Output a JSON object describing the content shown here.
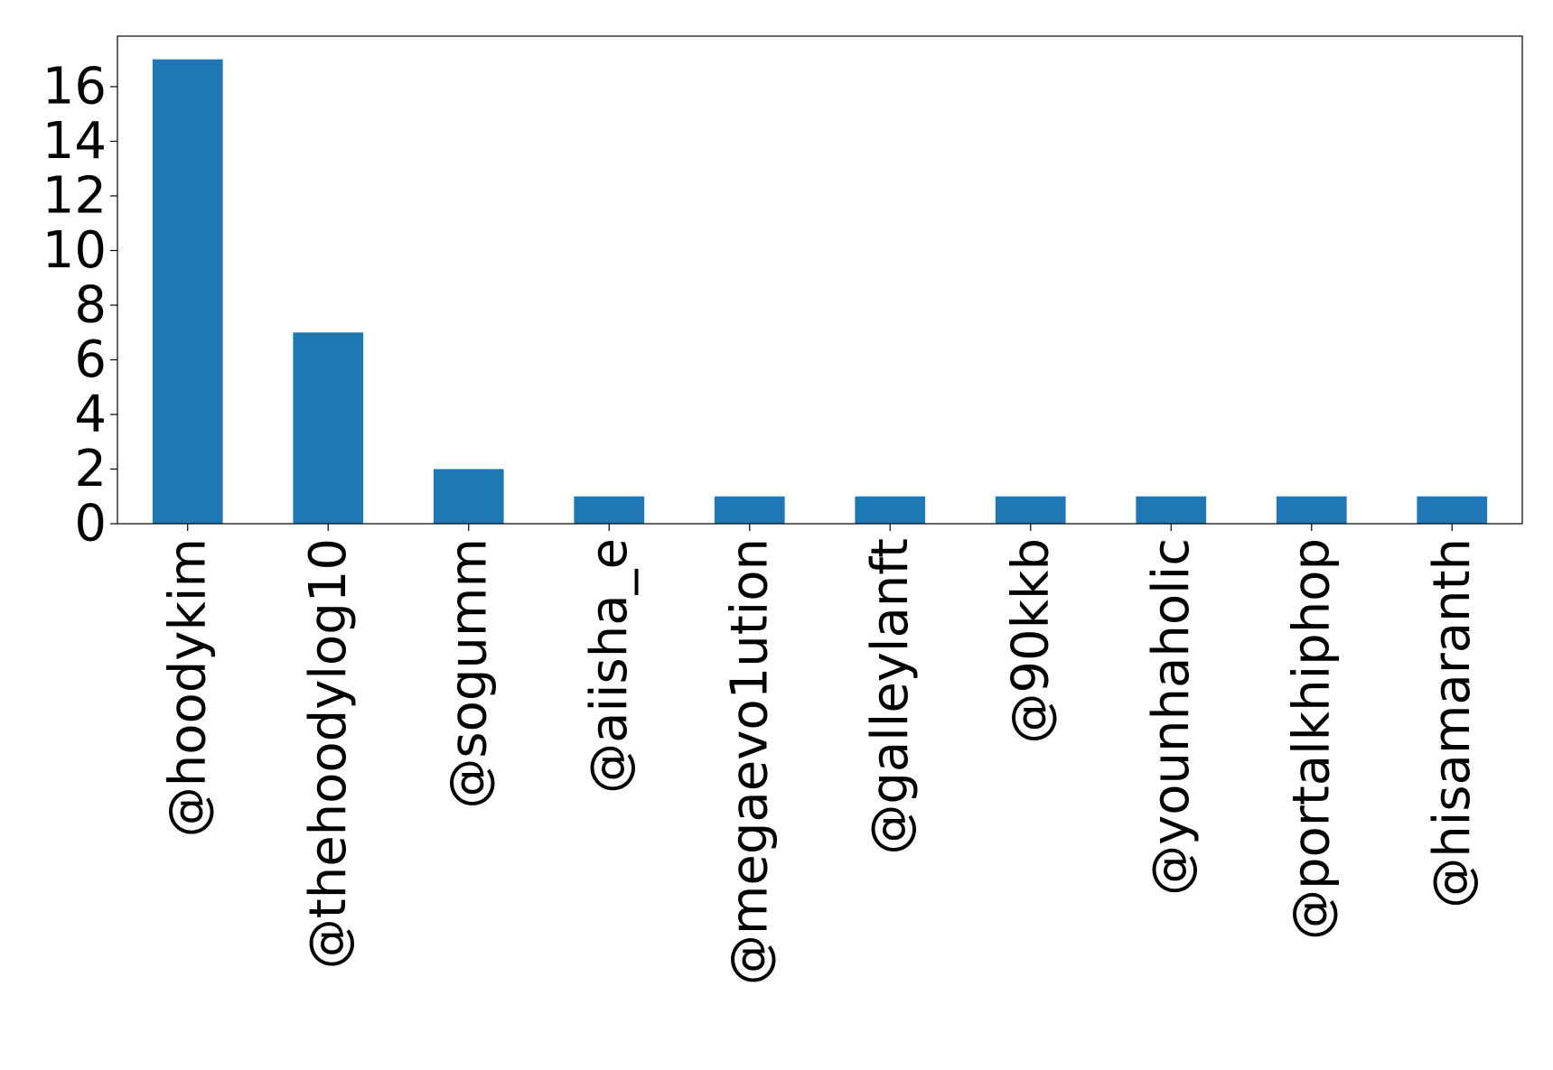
{
  "chart_data": {
    "type": "bar",
    "categories": [
      "@hoodykim",
      "@thehoodylog10",
      "@sogumm",
      "@aiisha_e",
      "@megaevo1ution",
      "@galleylanft",
      "@90kkb",
      "@younhaholic",
      "@portalkhiphop",
      "@hisamaranth"
    ],
    "values": [
      17,
      7,
      2,
      1,
      1,
      1,
      1,
      1,
      1,
      1
    ],
    "y_ticks": [
      0,
      2,
      4,
      6,
      8,
      10,
      12,
      14,
      16
    ],
    "ylim": [
      0,
      17.85
    ],
    "grid": false,
    "legend": "none",
    "colors": {
      "bar": "#1f77b4",
      "axes": "#000000",
      "background": "#ffffff"
    }
  }
}
